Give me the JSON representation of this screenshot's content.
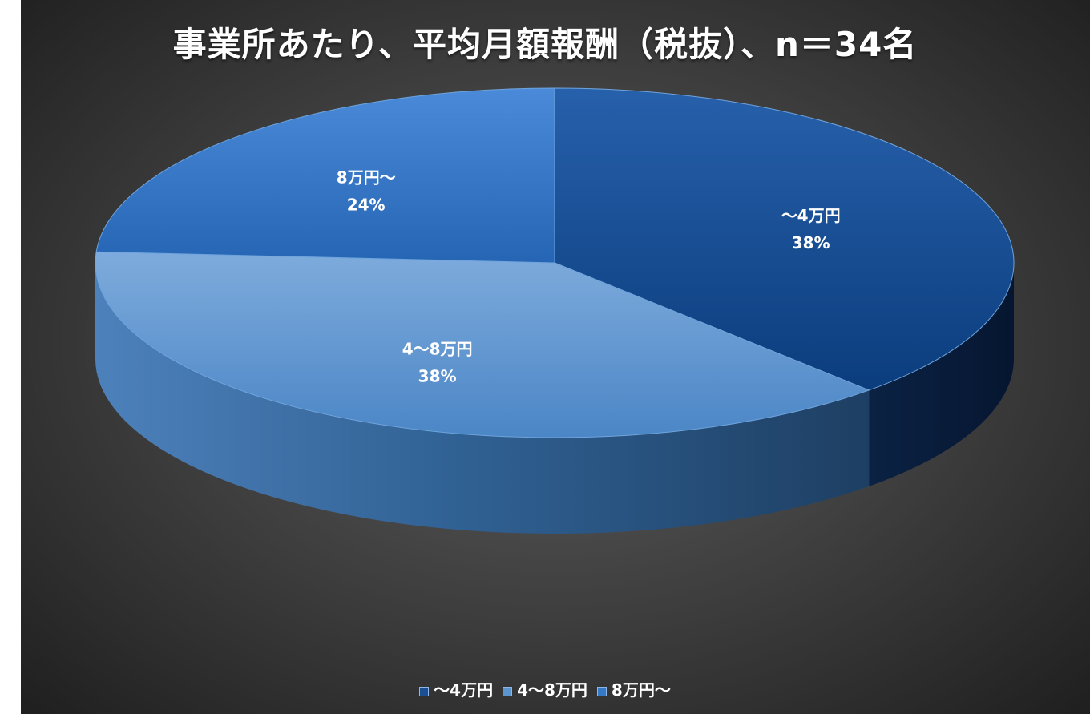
{
  "chart_data": {
    "type": "pie",
    "title": "事業所あたり、平均月額報酬（税抜）、n＝34名",
    "categories": [
      "～4万円",
      "4～8万円",
      "8万円～"
    ],
    "values": [
      38,
      38,
      24
    ],
    "labels": [
      "38%",
      "38%",
      "24%"
    ],
    "colors": [
      "#1b4f93",
      "#5b95cf",
      "#3478c6"
    ],
    "legend_position": "bottom",
    "style": "3d"
  }
}
